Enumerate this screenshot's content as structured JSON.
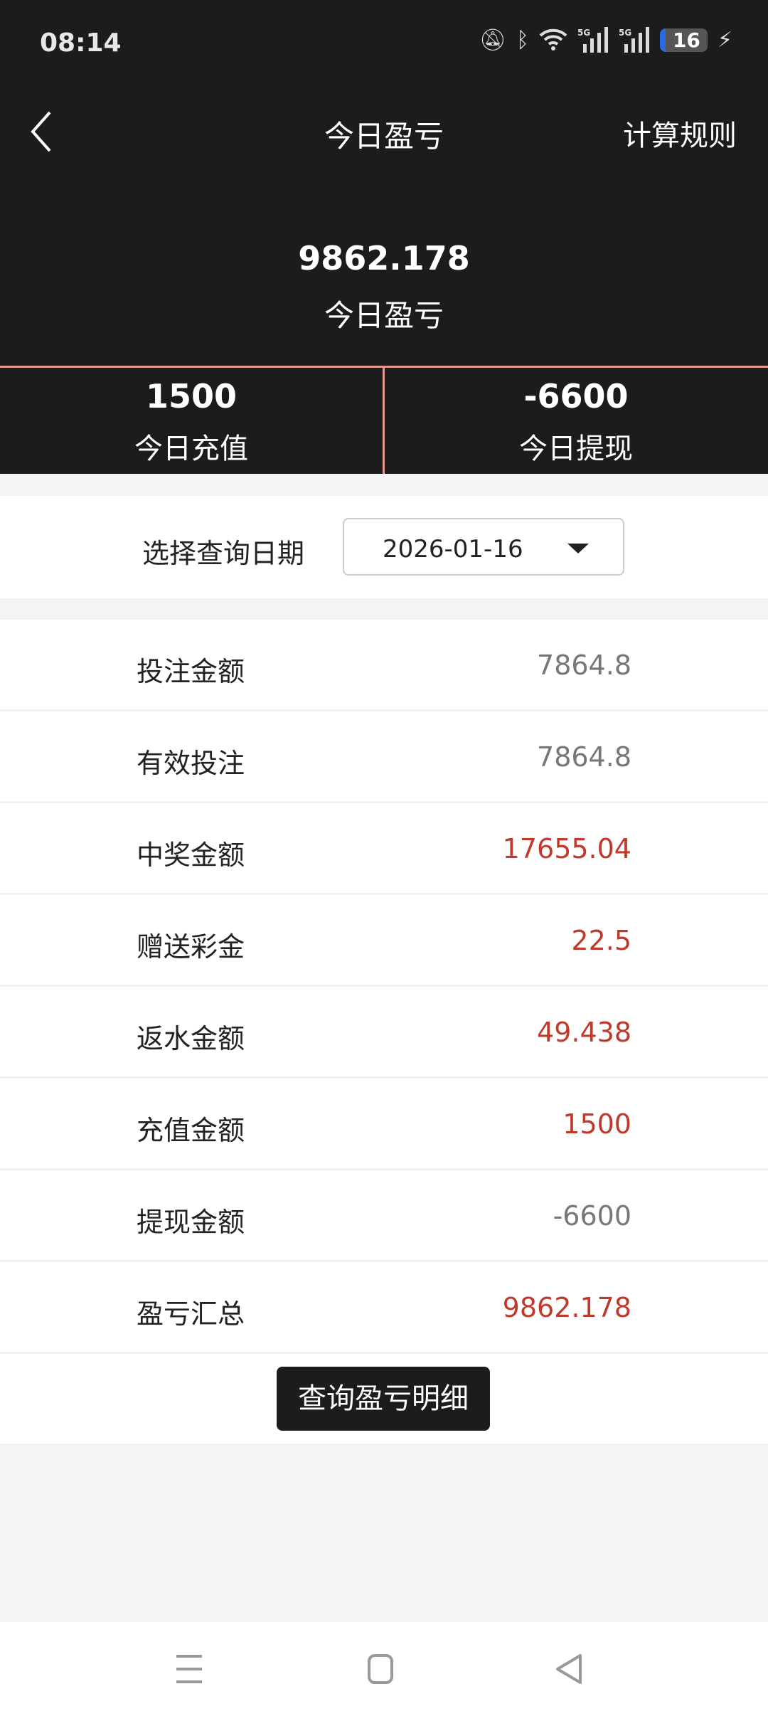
{
  "status_bar": {
    "time": "08:14",
    "battery": "16",
    "icons": [
      "mute-icon",
      "bluetooth-icon",
      "wifi-icon",
      "signal-5g-icon",
      "signal-5g-icon",
      "battery-icon",
      "charging-icon"
    ]
  },
  "header": {
    "title": "今日盈亏",
    "rules_label": "计算规则"
  },
  "summary": {
    "value": "9862.178",
    "label": "今日盈亏"
  },
  "stats": [
    {
      "value": "1500",
      "label": "今日充值"
    },
    {
      "value": "-6600",
      "label": "今日提现"
    }
  ],
  "date_filter": {
    "label": "选择查询日期",
    "value": "2026-01-16"
  },
  "rows": [
    {
      "label": "投注金额",
      "value": "7864.8",
      "color": "#777777"
    },
    {
      "label": "有效投注",
      "value": "7864.8",
      "color": "#777777"
    },
    {
      "label": "中奖金额",
      "value": "17655.04",
      "color": "#c0392b"
    },
    {
      "label": "赠送彩金",
      "value": "22.5",
      "color": "#c0392b"
    },
    {
      "label": "返水金额",
      "value": "49.438",
      "color": "#c0392b"
    },
    {
      "label": "充值金额",
      "value": "1500",
      "color": "#c0392b"
    },
    {
      "label": "提现金额",
      "value": "-6600",
      "color": "#777777"
    },
    {
      "label": "盈亏汇总",
      "value": "9862.178",
      "color": "#c0392b"
    }
  ],
  "detail_button": "查询盈亏明细",
  "colors": {
    "header_bg": "#1c1c1c",
    "divider": "#e6968c",
    "positive": "#c0392b",
    "neutral": "#777777"
  }
}
